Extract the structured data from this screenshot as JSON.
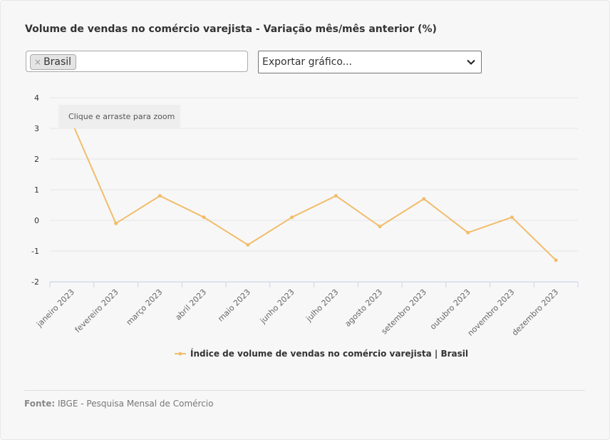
{
  "title": "Volume de vendas no comércio varejista - Variação mês/mês anterior (%)",
  "location_filter": {
    "chip_label": "Brasil",
    "remove_symbol": "×"
  },
  "export": {
    "placeholder": "Exportar gráfico..."
  },
  "zoom_hint": "Clique e arraste para zoom",
  "footer": {
    "label": "Fonte:",
    "source": "IBGE - Pesquisa Mensal de Comércio"
  },
  "colors": {
    "series": "#f1bd6c",
    "grid": "#e6e6e6",
    "axis_text": "#666666"
  },
  "chart_data": {
    "type": "line",
    "categories": [
      "janeiro 2023",
      "fevereiro 2023",
      "março 2023",
      "abril 2023",
      "maio 2023",
      "junho 2023",
      "julho 2023",
      "agosto 2023",
      "setembro 2023",
      "outubro 2023",
      "novembro 2023",
      "dezembro 2023"
    ],
    "series": [
      {
        "name": "Índice de volume de vendas no comércio varejista | Brasil",
        "values": [
          3.2,
          -0.1,
          0.8,
          0.1,
          -0.8,
          0.1,
          0.8,
          -0.2,
          0.7,
          -0.4,
          0.1,
          -1.3
        ]
      }
    ],
    "ylim": [
      -2,
      4
    ],
    "yticks": [
      -2,
      -1,
      0,
      1,
      2,
      3,
      4
    ],
    "grid": true,
    "legend": "bottom"
  }
}
